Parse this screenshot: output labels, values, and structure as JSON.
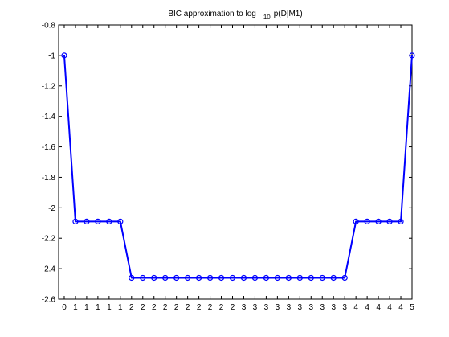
{
  "chart_data": {
    "type": "line",
    "title_main": "BIC approximation to log",
    "title_sub": "10",
    "title_tail": "p(D|M1)",
    "x_tick_labels": [
      "0",
      "1",
      "1",
      "1",
      "1",
      "1",
      "2",
      "2",
      "2",
      "2",
      "2",
      "2",
      "2",
      "2",
      "2",
      "2",
      "3",
      "3",
      "3",
      "3",
      "3",
      "3",
      "3",
      "3",
      "3",
      "3",
      "4",
      "4",
      "4",
      "4",
      "4",
      "5"
    ],
    "y_ticks": [
      -0.8,
      -1,
      -1.2,
      -1.4,
      -1.6,
      -1.8,
      -2,
      -2.2,
      -2.4,
      -2.6
    ],
    "y_tick_labels": [
      "-0.8",
      "-1",
      "-1.2",
      "-1.4",
      "-1.6",
      "-1.8",
      "-2",
      "-2.2",
      "-2.4",
      "-2.6"
    ],
    "ylim": [
      -2.6,
      -0.8
    ],
    "xlim": [
      -0.5,
      31
    ],
    "grid": false,
    "series": [
      {
        "color": "#0000ff",
        "marker": "circle",
        "values": [
          -1.0,
          -2.09,
          -2.09,
          -2.09,
          -2.09,
          -2.09,
          -2.46,
          -2.46,
          -2.46,
          -2.46,
          -2.46,
          -2.46,
          -2.46,
          -2.46,
          -2.46,
          -2.46,
          -2.46,
          -2.46,
          -2.46,
          -2.46,
          -2.46,
          -2.46,
          -2.46,
          -2.46,
          -2.46,
          -2.46,
          -2.09,
          -2.09,
          -2.09,
          -2.09,
          -2.09,
          -1.0
        ]
      }
    ]
  }
}
